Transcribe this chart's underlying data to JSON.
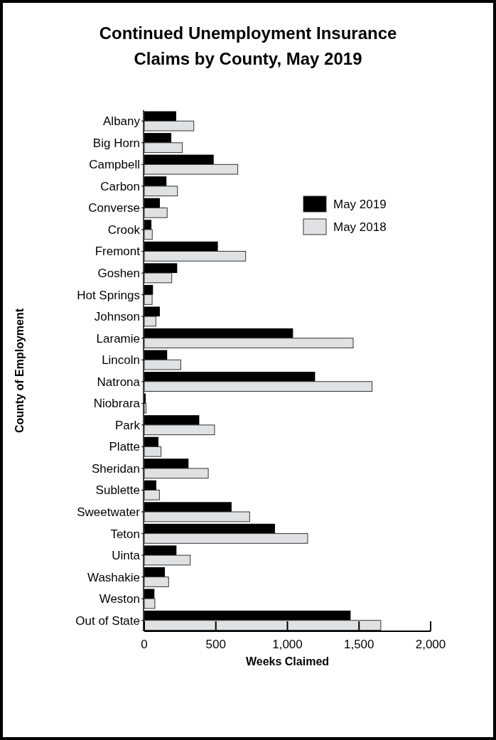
{
  "chart_data": {
    "type": "bar",
    "orientation": "horizontal",
    "title": "Continued Unemployment Insurance Claims by County, May 2019",
    "xlabel": "Weeks Claimed",
    "ylabel": "County of Employment",
    "categories": [
      "Albany",
      "Big Horn",
      "Campbell",
      "Carbon",
      "Converse",
      "Crook",
      "Fremont",
      "Goshen",
      "Hot Springs",
      "Johnson",
      "Laramie",
      "Lincoln",
      "Natrona",
      "Niobrara",
      "Park",
      "Platte",
      "Sheridan",
      "Sublette",
      "Sweetwater",
      "Teton",
      "Uinta",
      "Washakie",
      "Weston",
      "Out of State"
    ],
    "series": [
      {
        "name": "May 2019",
        "color": "#000000",
        "values": [
          223,
          189,
          485,
          155,
          109,
          50,
          514,
          230,
          61,
          109,
          1039,
          160,
          1193,
          10,
          384,
          99,
          309,
          84,
          610,
          913,
          225,
          144,
          71,
          1441
        ]
      },
      {
        "name": "May 2018",
        "color": "#e0e1e3",
        "values": [
          346,
          266,
          653,
          232,
          160,
          56,
          708,
          192,
          55,
          81,
          1459,
          255,
          1591,
          13,
          491,
          117,
          447,
          106,
          736,
          1141,
          321,
          170,
          74,
          1652
        ]
      }
    ],
    "xlim": [
      0,
      2000
    ],
    "xticks": [
      0,
      500,
      {
        "value": 1000,
        "label": "1,000"
      },
      {
        "value": 1500,
        "label": "1,500"
      },
      {
        "value": 2000,
        "label": "2,000"
      }
    ],
    "grid": false,
    "legend": "top right"
  }
}
